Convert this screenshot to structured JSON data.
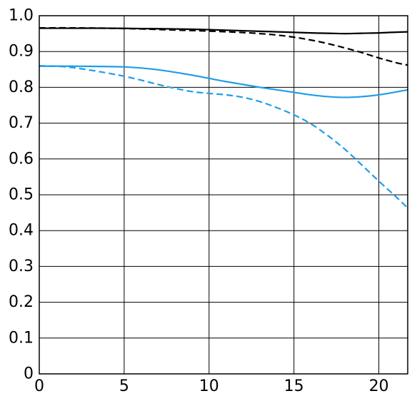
{
  "chart_data": {
    "type": "line",
    "title": "",
    "xlabel": "",
    "ylabel": "",
    "xlim": [
      0,
      21.7
    ],
    "ylim": [
      0,
      1.0
    ],
    "x_ticks": [
      0,
      5,
      10,
      15,
      20
    ],
    "y_ticks": [
      0,
      0.1,
      0.2,
      0.3,
      0.4,
      0.5,
      0.6,
      0.7,
      0.8,
      0.9,
      1.0
    ],
    "x_tick_labels": [
      "0",
      "5",
      "10",
      "15",
      "20"
    ],
    "y_tick_labels": [
      "0",
      "0.1",
      "0.2",
      "0.3",
      "0.4",
      "0.5",
      "0.6",
      "0.7",
      "0.8",
      "0.9",
      "1.0"
    ],
    "grid": true,
    "legend": "none",
    "series": [
      {
        "color": "#000000",
        "dash": "solid",
        "x": [
          0,
          2,
          4,
          6,
          8,
          10,
          12,
          14,
          16,
          17,
          18,
          19,
          20,
          21,
          21.7
        ],
        "y": [
          0.965,
          0.965,
          0.965,
          0.964,
          0.963,
          0.961,
          0.958,
          0.955,
          0.952,
          0.951,
          0.95,
          0.951,
          0.952,
          0.954,
          0.955
        ]
      },
      {
        "color": "#000000",
        "dash": "dashed",
        "x": [
          0,
          2,
          4,
          6,
          8,
          10,
          12,
          13,
          14,
          15,
          16,
          17,
          18,
          19,
          20,
          21,
          21.7
        ],
        "y": [
          0.966,
          0.966,
          0.965,
          0.963,
          0.96,
          0.957,
          0.953,
          0.95,
          0.946,
          0.94,
          0.932,
          0.922,
          0.91,
          0.897,
          0.882,
          0.869,
          0.862
        ]
      },
      {
        "color": "#1e9ee8",
        "dash": "solid",
        "x": [
          0,
          2,
          4,
          5,
          6,
          7,
          8,
          9,
          10,
          11,
          12,
          13,
          14,
          15,
          16,
          17,
          18,
          19,
          20,
          21,
          21.7
        ],
        "y": [
          0.859,
          0.859,
          0.858,
          0.857,
          0.854,
          0.849,
          0.842,
          0.834,
          0.825,
          0.816,
          0.808,
          0.8,
          0.793,
          0.786,
          0.779,
          0.774,
          0.772,
          0.774,
          0.779,
          0.787,
          0.793
        ]
      },
      {
        "color": "#1e9ee8",
        "dash": "dashed",
        "x": [
          0,
          1,
          2,
          3,
          4,
          5,
          6,
          7,
          8,
          9,
          10,
          11,
          12,
          13,
          14,
          15,
          16,
          17,
          18,
          19,
          20,
          21,
          21.7
        ],
        "y": [
          0.86,
          0.859,
          0.855,
          0.848,
          0.84,
          0.831,
          0.82,
          0.808,
          0.797,
          0.788,
          0.783,
          0.779,
          0.772,
          0.76,
          0.743,
          0.723,
          0.698,
          0.665,
          0.627,
          0.583,
          0.538,
          0.495,
          0.463
        ]
      }
    ]
  }
}
